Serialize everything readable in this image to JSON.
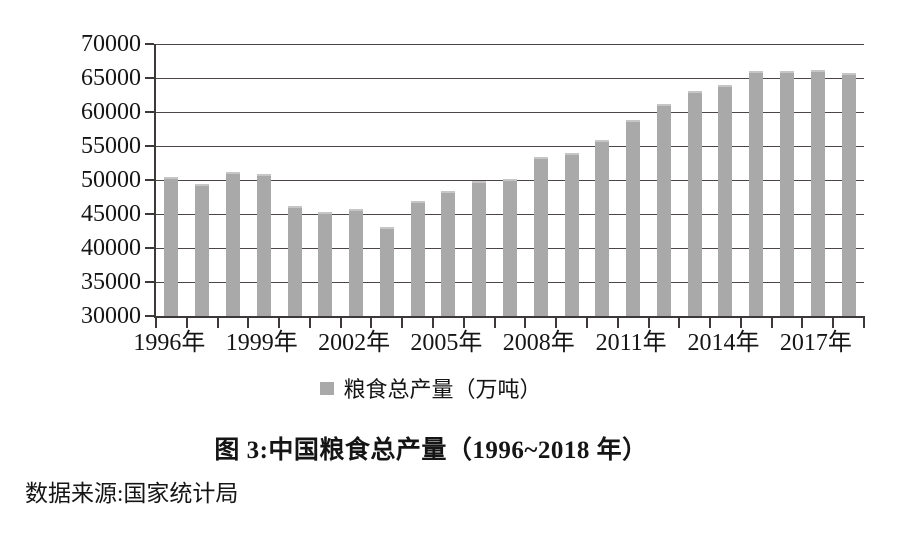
{
  "chart_data": {
    "type": "bar",
    "title": "图 3:中国粮食总产量（1996~2018 年）",
    "source": "数据来源:国家统计局",
    "legend": "粮食总产量（万吨）",
    "categories": [
      "1996",
      "1997",
      "1998",
      "1999",
      "2000",
      "2001",
      "2002",
      "2003",
      "2004",
      "2005",
      "2006",
      "2007",
      "2008",
      "2009",
      "2010",
      "2011",
      "2012",
      "2013",
      "2014",
      "2015",
      "2016",
      "2017",
      "2018"
    ],
    "values": [
      50454,
      49417,
      51230,
      50839,
      46218,
      45264,
      45706,
      43070,
      46947,
      48402,
      49804,
      50160,
      53434,
      53941,
      55911,
      58849,
      61223,
      63048,
      63965,
      66060,
      66044,
      66161,
      65789
    ],
    "ylim": [
      30000,
      70000
    ],
    "yticks": [
      30000,
      35000,
      40000,
      45000,
      50000,
      55000,
      60000,
      65000,
      70000
    ],
    "x_axis_shown_labels": [
      "1996年",
      "1999年",
      "2002年",
      "2005年",
      "2008年",
      "2011年",
      "2014年",
      "2017年"
    ],
    "x_label_every": 3,
    "grid": "horizontal",
    "legend_position": "bottom",
    "colors": {
      "bar": "#a9a9a9",
      "bar_top_edge": "#c6c6c6",
      "grid_line": "#4c4646",
      "axis_line": "#3e3939",
      "text": "#151515",
      "background": "#ffffff"
    }
  }
}
